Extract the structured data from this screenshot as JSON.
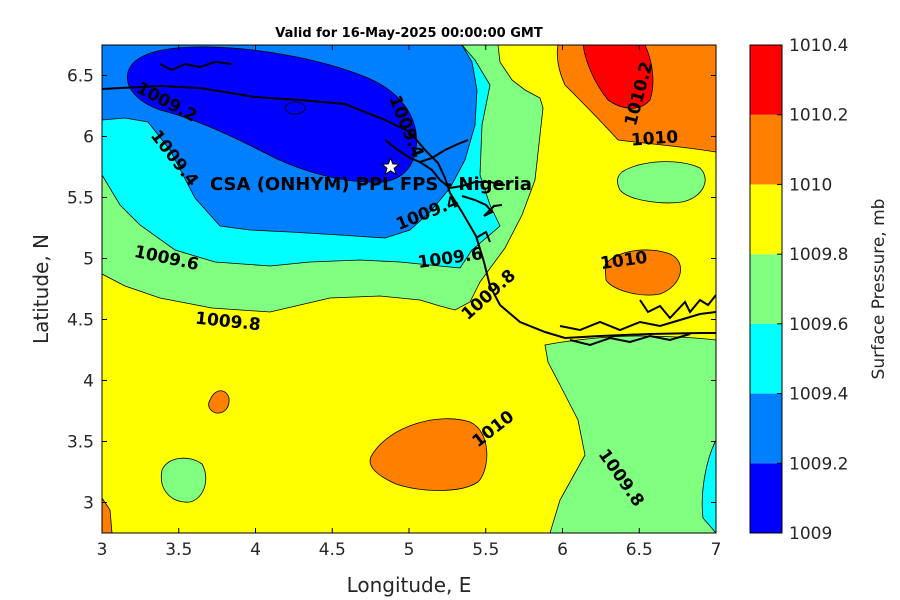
{
  "title": "Valid for 16-May-2025 00:00:00 GMT",
  "site_label": "CSA (ONHYM) PPL FPS - Nigeria",
  "x_label": "Longitude, E",
  "y_label": "Latitude, N",
  "colorbar_label": "Surface Pressure, mb",
  "x_range": [
    3,
    7
  ],
  "y_range": [
    2.75,
    6.75
  ],
  "x_ticks": [
    "3",
    "3.5",
    "4",
    "4.5",
    "5",
    "5.5",
    "6",
    "6.5",
    "7"
  ],
  "y_ticks": [
    "3",
    "3.5",
    "4",
    "4.5",
    "5",
    "5.5",
    "6",
    "6.5"
  ],
  "colorbar": {
    "levels": [
      "1009",
      "1009.2",
      "1009.4",
      "1009.6",
      "1009.8",
      "1010",
      "1010.2",
      "1010.4"
    ],
    "colors": [
      "#0000ff",
      "#0080ff",
      "#00ffff",
      "#80ff80",
      "#ffff00",
      "#ff8000",
      "#ff0000",
      "#800000"
    ]
  },
  "site_marker": {
    "lon": 4.88,
    "lat": 5.75
  },
  "contour_labels": [
    {
      "text": "1009.2",
      "lon": 3.42,
      "lat": 6.28,
      "rot": 28
    },
    {
      "text": "1009.4",
      "lon": 3.47,
      "lat": 5.82,
      "rot": 52
    },
    {
      "text": "1009.4",
      "lon": 4.98,
      "lat": 6.08,
      "rot": 68
    },
    {
      "text": "1009.4",
      "lon": 5.12,
      "lat": 5.37,
      "rot": -22
    },
    {
      "text": "1009.6",
      "lon": 3.42,
      "lat": 5.0,
      "rot": 12
    },
    {
      "text": "1009.6",
      "lon": 5.27,
      "lat": 5.0,
      "rot": -8
    },
    {
      "text": "1009.8",
      "lon": 3.82,
      "lat": 4.48,
      "rot": 6
    },
    {
      "text": "1009.8",
      "lon": 5.52,
      "lat": 4.7,
      "rot": -42
    },
    {
      "text": "1009.8",
      "lon": 6.38,
      "lat": 3.2,
      "rot": 55
    },
    {
      "text": "1010",
      "lon": 5.55,
      "lat": 3.6,
      "rot": -38
    },
    {
      "text": "1010",
      "lon": 6.4,
      "lat": 4.98,
      "rot": -8
    },
    {
      "text": "1010",
      "lon": 6.6,
      "lat": 5.98,
      "rot": -4
    },
    {
      "text": "1010.2",
      "lon": 6.5,
      "lat": 6.35,
      "rot": -75
    }
  ]
}
